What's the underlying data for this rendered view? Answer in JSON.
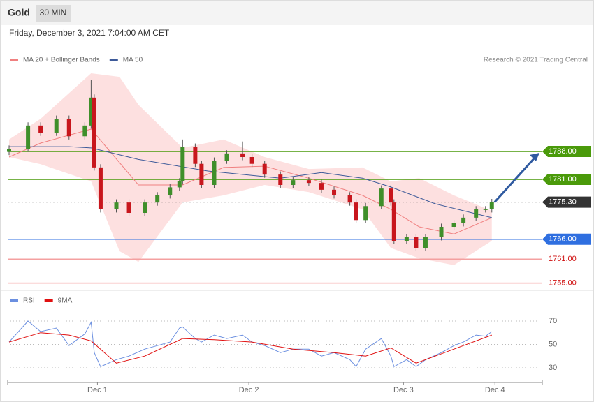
{
  "header": {
    "title": "Gold",
    "tab": "30 MIN",
    "date": "Friday, December 3, 2021 7:04:00 AM CET"
  },
  "chart_data": [
    {
      "type": "candlestick",
      "source": "Research © 2021 Trading Central",
      "xlim": [
        0,
        169
      ],
      "ylim": [
        1754,
        1808
      ],
      "candles": {
        "up_color": "#3f8f2a",
        "down_color": "#c8161d",
        "x": [
          0,
          6,
          10,
          15,
          19,
          24,
          26,
          27,
          29,
          34,
          38,
          43,
          47,
          51,
          54,
          55,
          59,
          61,
          65,
          69,
          74,
          77,
          81,
          86,
          90,
          95,
          99,
          103,
          108,
          110,
          113,
          118,
          121,
          122,
          126,
          129,
          132,
          137,
          141,
          144,
          148,
          151,
          153
        ],
        "open": [
          1787.9,
          1788.7,
          1794.5,
          1792.7,
          1796.2,
          1791.8,
          1794.5,
          1801.5,
          1784,
          1773.5,
          1775.2,
          1772.6,
          1775.2,
          1777,
          1779,
          1780.5,
          1789.2,
          1784.9,
          1779.6,
          1785.7,
          1787.5,
          1786.6,
          1784.9,
          1782.2,
          1779.6,
          1780.8,
          1780.1,
          1778.4,
          1777,
          1775.2,
          1770.8,
          1774.3,
          1778.7,
          1775.2,
          1765.6,
          1766.5,
          1763.8,
          1766.5,
          1769.1,
          1770,
          1771.4,
          1773.5,
          1773.5
        ],
        "high": [
          1789.5,
          1795.3,
          1795.3,
          1797,
          1797,
          1795.3,
          1806,
          1802.3,
          1784.8,
          1776,
          1776,
          1776,
          1777.8,
          1779.8,
          1781.3,
          1791,
          1790,
          1785.7,
          1786.5,
          1788.3,
          1790.5,
          1787.4,
          1785.7,
          1783,
          1781.6,
          1781.6,
          1780.9,
          1779.2,
          1777.8,
          1776,
          1775.1,
          1779.5,
          1779.5,
          1776,
          1767.3,
          1767.3,
          1767.3,
          1769.9,
          1770.8,
          1772.2,
          1774.3,
          1774.3,
          1776.1
        ],
        "low": [
          1787.1,
          1787.9,
          1791.9,
          1791.9,
          1791,
          1791,
          1793.7,
          1783.2,
          1772.7,
          1772.7,
          1771.8,
          1771.8,
          1774.4,
          1776.2,
          1778.2,
          1779.7,
          1784.1,
          1778.8,
          1778.8,
          1784.9,
          1785.8,
          1784.1,
          1781.4,
          1778.8,
          1778.8,
          1779.3,
          1777.6,
          1776.2,
          1774.4,
          1770,
          1770,
          1773.5,
          1774.4,
          1764.8,
          1764.8,
          1763,
          1763,
          1765.7,
          1768.3,
          1769.2,
          1770.6,
          1772.7,
          1772.7
        ],
        "close": [
          1788.7,
          1794.5,
          1792.7,
          1796.2,
          1791.8,
          1794.5,
          1801.5,
          1784,
          1773.5,
          1775.2,
          1772.6,
          1775.2,
          1777,
          1779,
          1780.5,
          1789.2,
          1784.9,
          1779.6,
          1785.7,
          1787.5,
          1786.6,
          1784.9,
          1782.2,
          1779.6,
          1780.8,
          1780.1,
          1778.4,
          1777,
          1775.2,
          1770.8,
          1774.3,
          1778.7,
          1775.2,
          1765.6,
          1766.5,
          1763.8,
          1766.5,
          1769.1,
          1770,
          1771.4,
          1773.5,
          1773.5,
          1775.3
        ]
      },
      "series": [
        {
          "name": "MA 20 + Bollinger Bands",
          "color": "#f08080",
          "x": [
            0,
            10,
            26,
            41,
            55,
            68,
            81,
            95,
            112,
            121,
            130,
            141,
            153
          ],
          "values": [
            1786.6,
            1790.1,
            1793.6,
            1779.6,
            1779.6,
            1784,
            1784.3,
            1781.3,
            1777,
            1773.5,
            1769.1,
            1767.3,
            1771.4
          ],
          "bands": {
            "color": "#fde0e0",
            "x": [
              0,
              10,
              26,
              35,
              41,
              55,
              68,
              81,
              95,
              112,
              121,
              130,
              141,
              153
            ],
            "upper": [
              1791,
              1796.2,
              1807.6,
              1806.7,
              1799.7,
              1788.9,
              1791,
              1786.6,
              1783.6,
              1784,
              1780.5,
              1781.3,
              1777,
              1773.1
            ],
            "lower": [
              1786.6,
              1784.8,
              1780.5,
              1763,
              1760.3,
              1775.2,
              1777,
              1779.6,
              1777.8,
              1773.5,
              1763.8,
              1761.2,
              1759.5,
              1765.6
            ]
          }
        },
        {
          "name": "MA 50",
          "color": "#3d5a99",
          "x": [
            0,
            19,
            26,
            41,
            63,
            86,
            99,
            112,
            121,
            135,
            153
          ],
          "values": [
            1789.2,
            1789.2,
            1788.9,
            1786,
            1783.1,
            1781.3,
            1782.7,
            1781.3,
            1779.1,
            1774.9,
            1771.4
          ]
        }
      ],
      "levels": [
        {
          "value": 1788,
          "label": "1788.00",
          "color": "#4a9a0a",
          "filled": true,
          "style": "solid"
        },
        {
          "value": 1781,
          "label": "1781.00",
          "color": "#4a9a0a",
          "filled": true,
          "style": "solid"
        },
        {
          "value": 1775.3,
          "label": "1775.30",
          "color": "#333333",
          "filled": true,
          "style": "dotted"
        },
        {
          "value": 1766,
          "label": "1766.00",
          "color": "#2f6fe0",
          "filled": true,
          "style": "solid"
        },
        {
          "value": 1761,
          "label": "1761.00",
          "color": "#f4a0a0",
          "filled": false,
          "style": "solid"
        },
        {
          "value": 1755,
          "label": "1755.00",
          "color": "#f4a0a0",
          "filled": false,
          "style": "solid"
        }
      ],
      "arrow_color": "#2f5aa0"
    },
    {
      "type": "line",
      "xlim": [
        0,
        169
      ],
      "ylim": [
        20,
        95
      ],
      "yticks": [
        70,
        50,
        30
      ],
      "grid": true,
      "xticks": [
        {
          "value": 28,
          "label": "Dec 1"
        },
        {
          "value": 76,
          "label": "Dec 2"
        },
        {
          "value": 125,
          "label": "Dec 3"
        },
        {
          "value": 154,
          "label": "Dec 4"
        }
      ],
      "series": [
        {
          "name": "RSI",
          "color": "#6b8fe0",
          "x": [
            0,
            6,
            10,
            15,
            19,
            24,
            26,
            27,
            29,
            34,
            38,
            43,
            47,
            51,
            54,
            55,
            59,
            61,
            65,
            69,
            74,
            77,
            81,
            86,
            90,
            95,
            99,
            103,
            108,
            110,
            113,
            118,
            121,
            122,
            126,
            129,
            132,
            137,
            141,
            144,
            148,
            151,
            153
          ],
          "values": [
            52,
            70,
            61,
            64,
            49,
            59,
            69,
            43,
            31,
            37,
            40,
            46,
            49,
            52,
            64,
            65,
            55,
            52,
            58,
            55,
            58,
            52,
            49,
            43,
            46,
            46,
            40,
            43,
            37,
            31,
            46,
            55,
            40,
            31,
            37,
            31,
            37,
            43,
            49,
            52,
            58,
            57,
            61
          ]
        },
        {
          "name": "9MA",
          "color": "#e01010",
          "x": [
            0,
            10,
            19,
            26,
            34,
            43,
            55,
            65,
            77,
            90,
            103,
            113,
            121,
            129,
            141,
            153
          ],
          "values": [
            52,
            60,
            58,
            53,
            34,
            40,
            55,
            54,
            52,
            46,
            43,
            40,
            47,
            34,
            46,
            58
          ]
        }
      ]
    }
  ]
}
